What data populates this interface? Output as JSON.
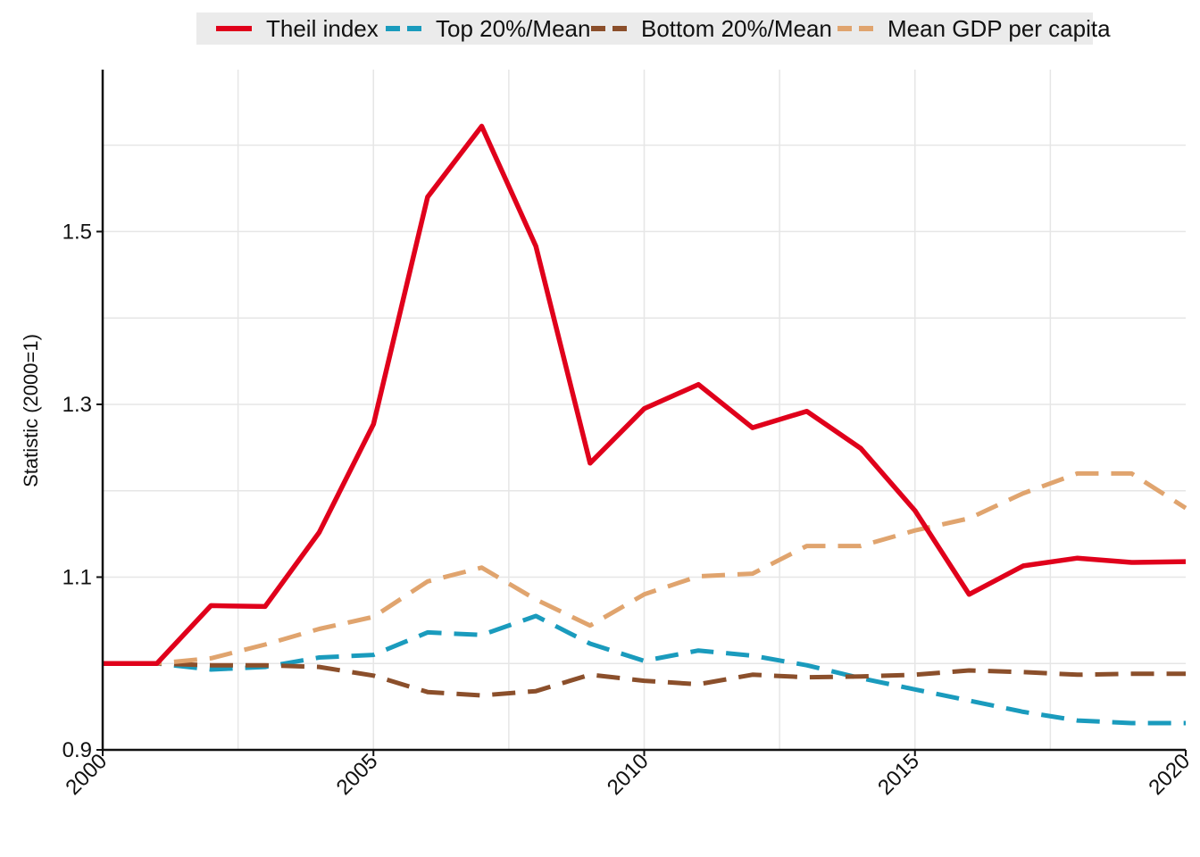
{
  "chart_data": {
    "type": "line",
    "ylabel": "Statistic (2000=1)",
    "xlabel": "",
    "xlim": [
      2000,
      2020
    ],
    "ylim": [
      0.9,
      1.6875
    ],
    "x_ticks": [
      2000,
      2005,
      2010,
      2015,
      2020
    ],
    "x_tick_labels": [
      "2000",
      "2005",
      "2010",
      "2015",
      "2020"
    ],
    "y_ticks": [
      0.9,
      1.1,
      1.3,
      1.5
    ],
    "y_tick_labels": [
      "0.9",
      "1.1",
      "1.3",
      "1.5"
    ],
    "grid": true,
    "legend_position": "top",
    "x": [
      2000,
      2001,
      2002,
      2003,
      2004,
      2005,
      2006,
      2007,
      2008,
      2009,
      2010,
      2011,
      2012,
      2013,
      2014,
      2015,
      2016,
      2017,
      2018,
      2019,
      2020
    ],
    "series": [
      {
        "name": "Theil index",
        "color": "#e0001b",
        "style": "solid",
        "values": [
          1.0,
          1.0,
          1.067,
          1.066,
          1.152,
          1.277,
          1.54,
          1.622,
          1.483,
          1.232,
          1.295,
          1.323,
          1.273,
          1.292,
          1.249,
          1.177,
          1.08,
          1.113,
          1.122,
          1.117,
          1.118
        ]
      },
      {
        "name": "Top 20%/Mean",
        "color": "#1a9bbd",
        "style": "dashed",
        "values": [
          1.0,
          1.0,
          0.993,
          0.996,
          1.007,
          1.01,
          1.036,
          1.033,
          1.055,
          1.023,
          1.003,
          1.015,
          1.009,
          0.998,
          0.983,
          0.97,
          0.957,
          0.944,
          0.934,
          0.931,
          0.931
        ]
      },
      {
        "name": "Bottom 20%/Mean",
        "color": "#8b4f2b",
        "style": "dashed",
        "values": [
          1.0,
          1.0,
          0.998,
          0.998,
          0.996,
          0.986,
          0.967,
          0.963,
          0.968,
          0.987,
          0.98,
          0.976,
          0.987,
          0.984,
          0.985,
          0.987,
          0.992,
          0.99,
          0.987,
          0.988,
          0.988
        ]
      },
      {
        "name": "Mean GDP per capita",
        "color": "#e0a46e",
        "style": "dashed",
        "values": [
          1.0,
          1.0,
          1.006,
          1.022,
          1.04,
          1.054,
          1.095,
          1.111,
          1.074,
          1.044,
          1.08,
          1.101,
          1.104,
          1.136,
          1.136,
          1.154,
          1.168,
          1.197,
          1.22,
          1.22,
          1.18
        ]
      }
    ]
  }
}
